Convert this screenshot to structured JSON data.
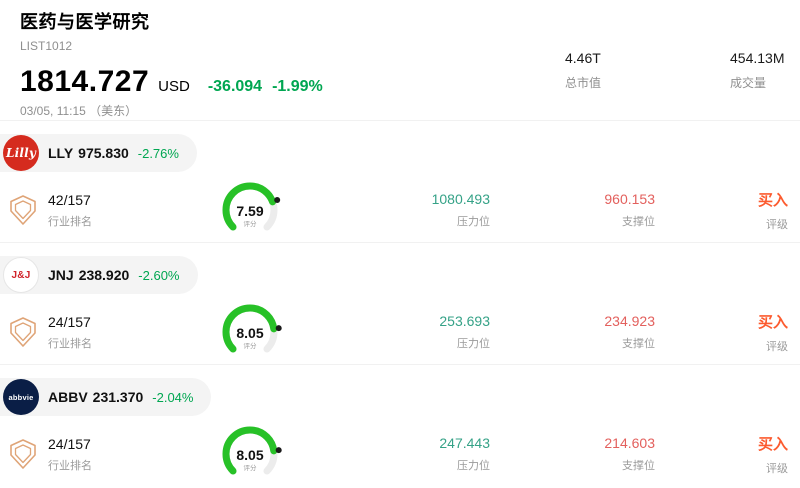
{
  "header": {
    "title": "医药与医学研究",
    "list_id": "LIST1012",
    "price": "1814.727",
    "currency": "USD",
    "change_amount": "-36.094",
    "change_percent": "-1.99%",
    "datetime": "03/05, 11:15 （美东）",
    "market_cap": {
      "value": "4.46T",
      "label": "总市值"
    },
    "volume": {
      "value": "454.13M",
      "label": "成交量"
    }
  },
  "labels": {
    "rank": "行业排名",
    "score": "评分",
    "resistance": "压力位",
    "support": "支撑位",
    "rating": "评级"
  },
  "stocks": [
    {
      "ticker": "LLY",
      "price": "975.830",
      "change": "-2.76%",
      "logo_text": "Lilly",
      "logo_bg": "#d52b1e",
      "logo_fg": "#ffffff",
      "logo_style": "script",
      "rank": "42/157",
      "score": "7.59",
      "resistance": "1080.493",
      "support": "960.153",
      "rating": "买入"
    },
    {
      "ticker": "JNJ",
      "price": "238.920",
      "change": "-2.60%",
      "logo_text": "J&J",
      "logo_bg": "#ffffff",
      "logo_fg": "#d0232a",
      "logo_style": "light",
      "rank": "24/157",
      "score": "8.05",
      "resistance": "253.693",
      "support": "234.923",
      "rating": "买入"
    },
    {
      "ticker": "ABBV",
      "price": "231.370",
      "change": "-2.04%",
      "logo_text": "abbvie",
      "logo_bg": "#0a1e46",
      "logo_fg": "#ffffff",
      "logo_style": "dark",
      "rank": "24/157",
      "score": "8.05",
      "resistance": "247.443",
      "support": "214.603",
      "rating": "买入"
    }
  ],
  "colors": {
    "down_green": "#00a651",
    "resistance_green": "#35a287",
    "support_red": "#e3605d",
    "rating_orange": "#fc5b2f",
    "gauge_green": "#27c127",
    "gauge_track": "#ececec",
    "strip_bg": "#f4f4f4",
    "rank_badge": "#dfa477"
  }
}
